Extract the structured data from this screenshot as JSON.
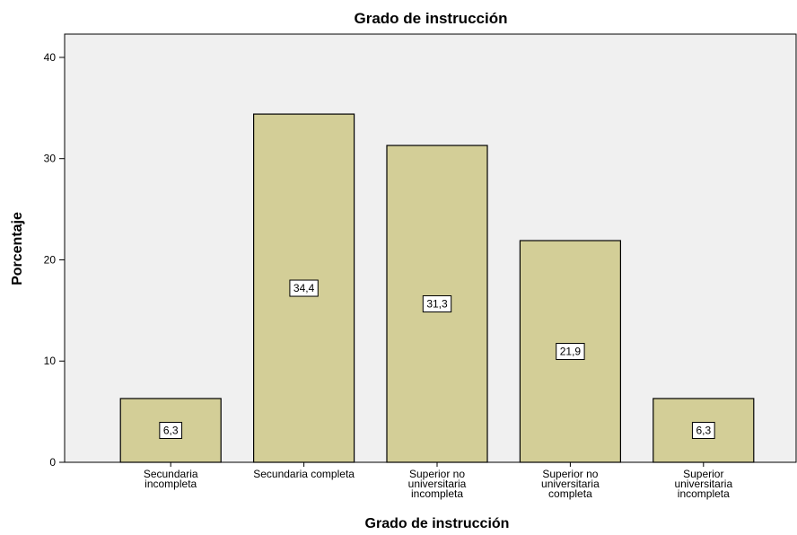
{
  "chart_data": {
    "type": "bar",
    "title": "Grado de instrucción",
    "x_label": "Grado de instrucción",
    "y_label": "Porcentaje",
    "categories": [
      "Secundaria\nincompleta",
      "Secundaria completa",
      "Superior no\nuniversitaria\nincompleta",
      "Superior no\nuniversitaria\ncompleta",
      "Superior\nuniversitaria\nincompleta"
    ],
    "values": [
      6.3,
      34.4,
      31.3,
      21.9,
      6.3
    ],
    "value_labels": [
      "6,3",
      "34,4",
      "31,3",
      "21,9",
      "6,3"
    ],
    "color": "#d3ce97",
    "ylim": [
      0,
      42.3
    ],
    "yticks": [
      0,
      10,
      20,
      30,
      40
    ],
    "grid": false
  }
}
